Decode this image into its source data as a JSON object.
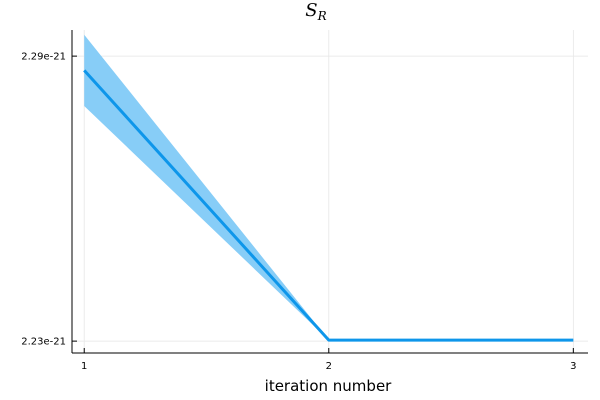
{
  "chart_data": {
    "type": "line",
    "title": "S",
    "title_subscript": "R",
    "xlabel": "iteration number",
    "ylabel": "",
    "x": [
      1,
      2,
      3
    ],
    "series": [
      {
        "values": [
          2.287e-21,
          2.2302e-21,
          2.2302e-21
        ],
        "band_upper": [
          2.2945e-21,
          2.2302e-21,
          2.2302e-21
        ],
        "band_lower": [
          2.2795e-21,
          2.2302e-21,
          2.2302e-21
        ],
        "color": "#0e96ea",
        "band_color": "#87cdf7"
      }
    ],
    "xlim": [
      0.95,
      3.06
    ],
    "ylim": [
      2.2275e-21,
      2.2955e-21
    ],
    "xticks": [
      1,
      2,
      3
    ],
    "xtick_labels": [
      "1",
      "2",
      "3"
    ],
    "yticks": [
      2.23e-21,
      2.29e-21
    ],
    "ytick_labels": [
      "2.23e-21",
      "2.29e-21"
    ],
    "grid": true,
    "legend": "none"
  }
}
